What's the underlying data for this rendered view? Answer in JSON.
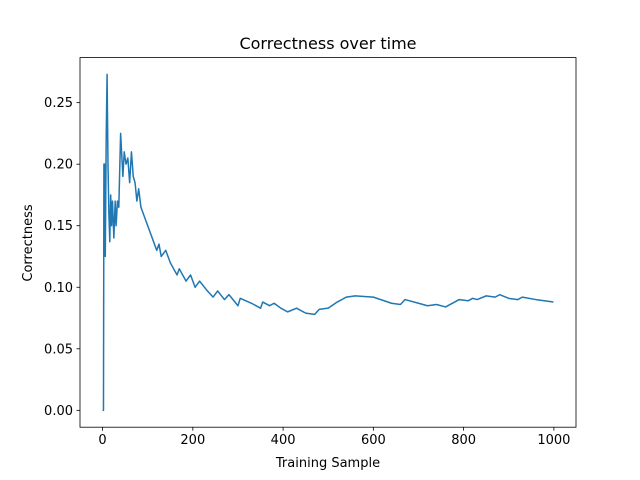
{
  "chart_data": {
    "type": "line",
    "title": "Correctness over time",
    "xlabel": "Training Sample",
    "ylabel": "Correctness",
    "x": [
      0,
      2,
      3,
      5,
      6,
      8,
      10,
      12,
      14,
      16,
      18,
      20,
      22,
      25,
      28,
      30,
      33,
      36,
      40,
      45,
      48,
      52,
      56,
      60,
      64,
      68,
      72,
      76,
      80,
      85,
      90,
      100,
      110,
      115,
      120,
      125,
      130,
      140,
      150,
      165,
      170,
      185,
      195,
      205,
      215,
      230,
      245,
      255,
      270,
      280,
      300,
      305,
      330,
      350,
      355,
      370,
      380,
      395,
      410,
      430,
      450,
      470,
      480,
      500,
      520,
      540,
      560,
      600,
      640,
      660,
      670,
      700,
      720,
      740,
      760,
      780,
      790,
      810,
      820,
      830,
      850,
      870,
      880,
      900,
      920,
      930,
      960,
      999
    ],
    "values": [
      0,
      0,
      0.2,
      0.2,
      0.125,
      0.22,
      0.273,
      0.2,
      0.16,
      0.137,
      0.175,
      0.15,
      0.17,
      0.14,
      0.17,
      0.15,
      0.17,
      0.165,
      0.225,
      0.19,
      0.21,
      0.2,
      0.205,
      0.185,
      0.21,
      0.19,
      0.185,
      0.17,
      0.18,
      0.165,
      0.16,
      0.15,
      0.14,
      0.135,
      0.13,
      0.135,
      0.125,
      0.13,
      0.12,
      0.11,
      0.115,
      0.105,
      0.11,
      0.1,
      0.105,
      0.098,
      0.092,
      0.097,
      0.09,
      0.094,
      0.085,
      0.091,
      0.087,
      0.083,
      0.088,
      0.085,
      0.087,
      0.083,
      0.08,
      0.083,
      0.079,
      0.078,
      0.082,
      0.083,
      0.088,
      0.092,
      0.093,
      0.092,
      0.087,
      0.086,
      0.09,
      0.087,
      0.085,
      0.086,
      0.084,
      0.088,
      0.09,
      0.089,
      0.091,
      0.09,
      0.093,
      0.092,
      0.094,
      0.091,
      0.09,
      0.092,
      0.09,
      0.088
    ],
    "color": "#1f77b4",
    "xlim": [
      -50,
      1049
    ],
    "ylim": [
      -0.0137,
      0.2866
    ],
    "xticks": [
      0,
      200,
      400,
      600,
      800,
      1000
    ],
    "yticks": [
      {
        "value": 0,
        "label": "0.00"
      },
      {
        "value": 0.05,
        "label": "0.05"
      },
      {
        "value": 0.1,
        "label": "0.10"
      },
      {
        "value": 0.15,
        "label": "0.15"
      },
      {
        "value": 0.2,
        "label": "0.20"
      },
      {
        "value": 0.25,
        "label": "0.25"
      }
    ]
  }
}
